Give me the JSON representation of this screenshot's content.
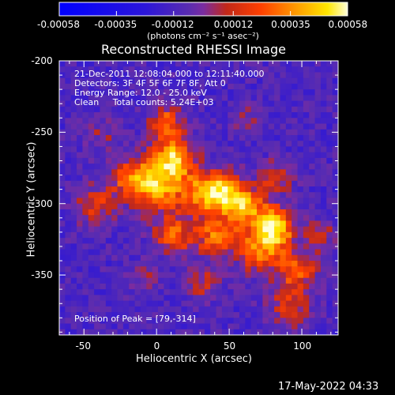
{
  "chart_data": {
    "type": "heatmap",
    "title": "Reconstructed RHESSI Image",
    "xlabel": "Heliocentric X (arcsec)",
    "ylabel": "Heliocentric Y (arcsec)",
    "xlim": [
      -67,
      125
    ],
    "ylim": [
      -392,
      -200
    ],
    "x_ticks": [
      -50,
      0,
      50,
      100
    ],
    "y_ticks": [
      -200,
      -250,
      -300,
      -350
    ],
    "colorbar": {
      "label": "(photons cm⁻² s⁻¹ asec⁻²)",
      "ticks": [
        "-0.00058",
        "-0.00035",
        "-0.00012",
        "0.00012",
        "0.00035",
        "0.00058"
      ],
      "range": [
        -0.00058,
        0.00058
      ]
    },
    "annotations": {
      "line1": "21-Dec-2011 12:08:04.000 to 12:11:40.000",
      "line2": "Detectors: 3F 4F 5F 6F 7F 8F, Att 0",
      "line3": "Energy Range: 12.0 - 25.0 keV",
      "line4": "Clean     Total counts: 5.24E+03",
      "peak": "Position of Peak = [79,-314]"
    },
    "peak": [
      79,
      -314
    ],
    "grid": false,
    "legend": "none"
  },
  "footer_date": "17-May-2022 04:33"
}
